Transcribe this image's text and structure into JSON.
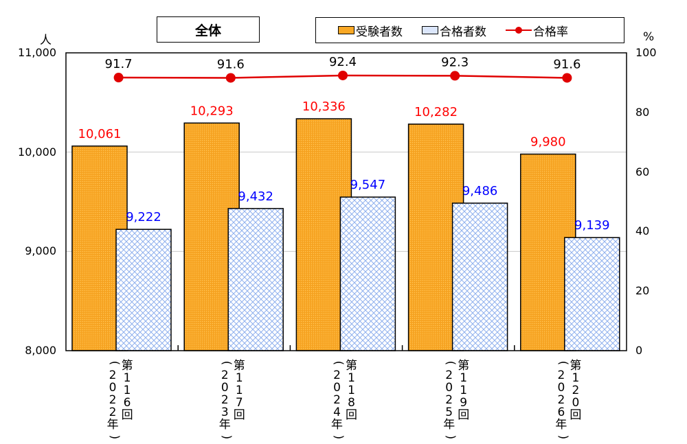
{
  "chart_data": {
    "type": "bar+line",
    "title": "全体",
    "categories": [
      "第116回（2022年）",
      "第117回（2023年）",
      "第118回（2024年）",
      "第119回（2025年）",
      "第120回（2026年）"
    ],
    "category_parts": [
      {
        "session": "第116回",
        "year": "2022年"
      },
      {
        "session": "第117回",
        "year": "2023年"
      },
      {
        "session": "第118回",
        "year": "2024年"
      },
      {
        "session": "第119回",
        "year": "2025年"
      },
      {
        "session": "第120回",
        "year": "2026年"
      }
    ],
    "series": [
      {
        "name": "受験者数",
        "type": "bar",
        "axis": "left",
        "color": "#F9A825",
        "label_color": "#ff0000",
        "values": [
          10061,
          10293,
          10336,
          10282,
          9980
        ],
        "labels": [
          "10,061",
          "10,293",
          "10,336",
          "10,282",
          "9,980"
        ]
      },
      {
        "name": "合格者数",
        "type": "bar",
        "axis": "left",
        "color": "#c9d9f7",
        "label_color": "#0000ff",
        "values": [
          9222,
          9432,
          9547,
          9486,
          9139
        ],
        "labels": [
          "9,222",
          "9,432",
          "9,547",
          "9,486",
          "9,139"
        ]
      },
      {
        "name": "合格率",
        "type": "line",
        "axis": "right",
        "color": "#e00000",
        "label_color": "#000000",
        "values": [
          91.7,
          91.6,
          92.4,
          92.3,
          91.6
        ],
        "labels": [
          "91.7",
          "91.6",
          "92.4",
          "92.3",
          "91.6"
        ]
      }
    ],
    "y_left": {
      "label": "人",
      "min": 8000,
      "max": 11000,
      "ticks": [
        "8,000",
        "9,000",
        "10,000",
        "11,000"
      ],
      "tick_values": [
        8000,
        9000,
        10000,
        11000
      ]
    },
    "y_right": {
      "label": "%",
      "min": 0,
      "max": 100,
      "ticks": [
        "0",
        "20",
        "40",
        "60",
        "80",
        "100"
      ],
      "tick_values": [
        0,
        20,
        40,
        60,
        80,
        100
      ]
    },
    "grid": true,
    "legend_position": "top"
  }
}
